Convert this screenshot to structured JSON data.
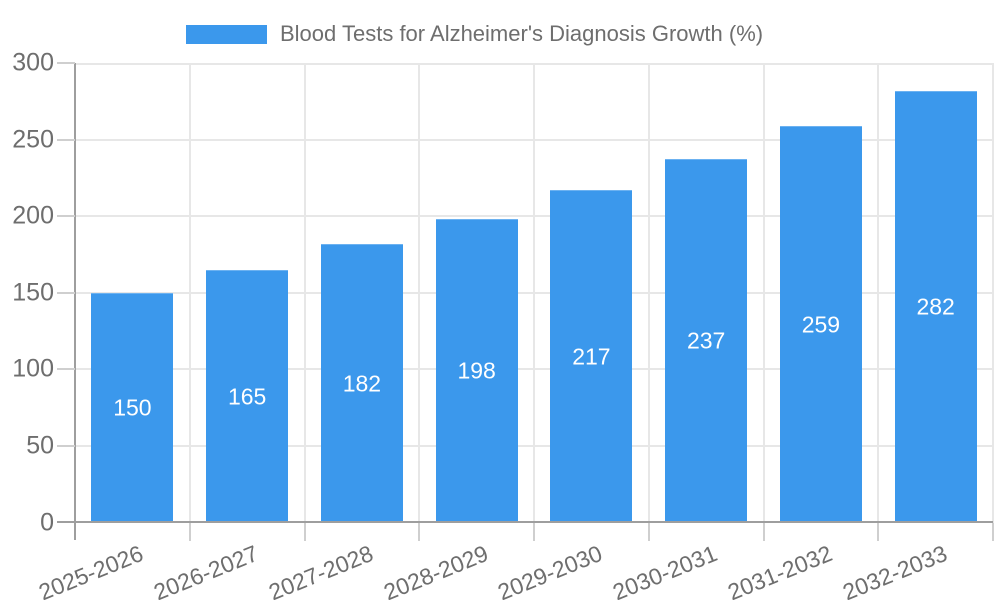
{
  "legend": {
    "label": "Blood Tests for Alzheimer's Diagnosis Growth (%)"
  },
  "chart_data": {
    "type": "bar",
    "title": "Blood Tests for Alzheimer's Diagnosis Growth (%)",
    "categories": [
      "2025-2026",
      "2026-2027",
      "2027-2028",
      "2028-2029",
      "2029-2030",
      "2030-2031",
      "2031-2032",
      "2032-2033"
    ],
    "values": [
      150,
      165,
      182,
      198,
      217,
      237,
      259,
      282
    ],
    "xlabel": "",
    "ylabel": "",
    "ylim": [
      0,
      300
    ],
    "y_ticks": [
      0,
      50,
      100,
      150,
      200,
      250,
      300
    ],
    "grid": true,
    "legend_position": "top-center",
    "x_label_rotation_deg": -22,
    "colors": {
      "bar": "#3b98ec",
      "grid": "#e7e7e7",
      "axis": "#9e9e9e",
      "tick": "#cfcfcf",
      "text": "#6e6e6e",
      "value_label": "#ffffff"
    }
  }
}
